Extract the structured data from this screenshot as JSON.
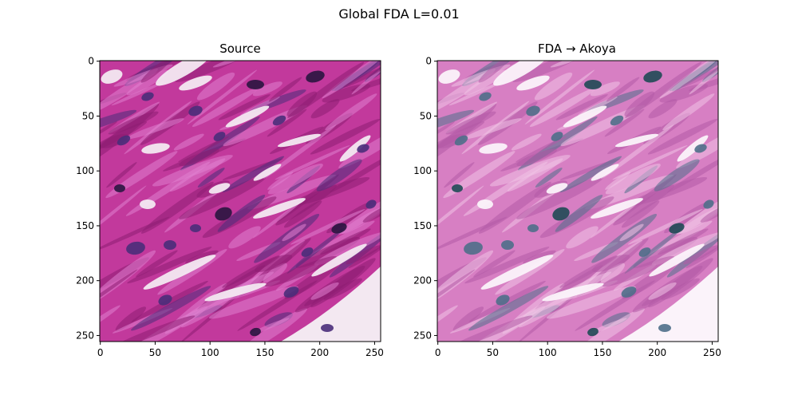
{
  "figure": {
    "suptitle": "Global FDA L=0.01"
  },
  "panels": [
    {
      "title": "Source",
      "xticks": [
        "0",
        "50",
        "100",
        "150",
        "200",
        "250"
      ],
      "yticks": [
        "0",
        "50",
        "100",
        "150",
        "200",
        "250"
      ],
      "palette": {
        "base": "#c2399c",
        "stroma_dark": "#8e1e73",
        "stroma_light": "#e07fcf",
        "nucleus": "#4a2d7a",
        "nucleus_dark": "#2a1540",
        "lumen": "#f3e8f1"
      }
    },
    {
      "title": "FDA → Akoya",
      "xticks": [
        "0",
        "50",
        "100",
        "150",
        "200",
        "250"
      ],
      "yticks": [
        "0",
        "50",
        "100",
        "150",
        "200",
        "250"
      ],
      "palette": {
        "base": "#d77fc3",
        "stroma_dark": "#b25aa6",
        "stroma_light": "#f0c3e6",
        "nucleus": "#4f6f8a",
        "nucleus_dark": "#1f4a55",
        "lumen": "#fbf3fa"
      }
    }
  ]
}
